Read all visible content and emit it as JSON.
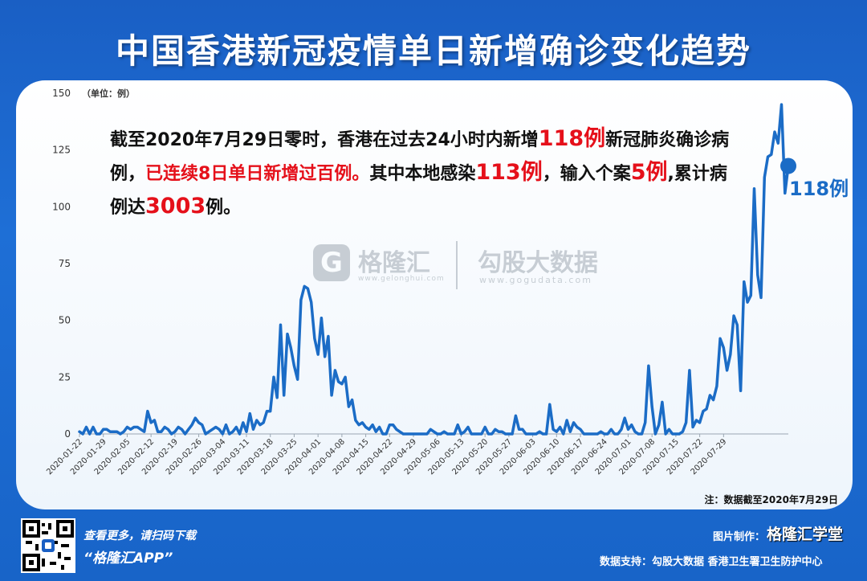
{
  "title": "中国香港新冠疫情单日新增确诊变化趋势",
  "annotation": {
    "p1": "截至2020年7月29日零时，香港在过去24小时内新增",
    "r1": "118例",
    "p2": "新冠肺炎确诊病例，",
    "r2": "已连续8日单日新增过百例。",
    "p3": "其中本地感染",
    "r3": "113例",
    "p4": "，输入个案",
    "r4": "5例",
    "p5": ",累计病例达",
    "r5": "3003",
    "p6": "例。"
  },
  "end_label": "118例",
  "note": "注：数据截至2020年7月29日",
  "watermark": {
    "logo": "G",
    "brand1": "格隆汇",
    "site1": "www.gelonghui.com",
    "brand2": "勾股大数据",
    "site2": "www.gogudata.com"
  },
  "footer": {
    "scan_text": "查看更多，请扫码下载",
    "app_text": "“格隆汇APP”",
    "made_by": "图片制作：",
    "brand": "格隆汇学堂",
    "support": "数据支持：勾股大数据  香港卫生署卫生防护中心"
  },
  "colors": {
    "line": "#1b6cc6",
    "highlight": "#e5101a",
    "background": "#1a5fc4"
  },
  "chart_data": {
    "type": "line",
    "title": "中国香港新冠疫情单日新增确诊变化趋势",
    "ylabel": "（单位：例）",
    "ylim": [
      0,
      150
    ],
    "yticks": [
      0,
      25,
      50,
      75,
      100,
      125,
      150
    ],
    "grid": false,
    "x_ticks": [
      "2020-01-22",
      "2020-01-29",
      "2020-02-05",
      "2020-02-12",
      "2020-02-19",
      "2020-02-26",
      "2020-03-04",
      "2020-03-11",
      "2020-03-18",
      "2020-03-25",
      "2020-04-01",
      "2020-04-08",
      "2020-04-15",
      "2020-04-22",
      "2020-04-29",
      "2020-05-06",
      "2020-05-13",
      "2020-05-20",
      "2020-05-27",
      "2020-06-03",
      "2020-06-10",
      "2020-06-17",
      "2020-06-24",
      "2020-07-01",
      "2020-07-08",
      "2020-07-15",
      "2020-07-22",
      "2020-07-29"
    ],
    "start_date": "2020-01-22",
    "series": [
      {
        "values": [
          1,
          0,
          3,
          0,
          3,
          0,
          0,
          2,
          2,
          1,
          1,
          1,
          0,
          1,
          3,
          2,
          3,
          3,
          2,
          1,
          10,
          5,
          6,
          1,
          1,
          3,
          2,
          0,
          1,
          3,
          2,
          0,
          2,
          4,
          7,
          5,
          4,
          0,
          1,
          2,
          3,
          2,
          0,
          4,
          0,
          1,
          3,
          0,
          5,
          1,
          9,
          2,
          6,
          4,
          5,
          10,
          10,
          25,
          16,
          48,
          17,
          44,
          38,
          30,
          24,
          59,
          65,
          64,
          58,
          42,
          35,
          51,
          34,
          43,
          17,
          28,
          23,
          22,
          25,
          12,
          15,
          6,
          4,
          5,
          3,
          2,
          4,
          1,
          3,
          0,
          0,
          4,
          4,
          2,
          1,
          0,
          0,
          0,
          0,
          0,
          0,
          0,
          0,
          2,
          1,
          0,
          0,
          1,
          0,
          0,
          0,
          4,
          0,
          1,
          3,
          0,
          0,
          0,
          0,
          3,
          0,
          0,
          2,
          1,
          1,
          0,
          0,
          0,
          8,
          2,
          2,
          0,
          0,
          0,
          0,
          1,
          0,
          0,
          13,
          2,
          1,
          3,
          0,
          6,
          1,
          5,
          3,
          2,
          0,
          0,
          0,
          0,
          0,
          1,
          0,
          0,
          2,
          0,
          0,
          2,
          7,
          2,
          4,
          1,
          0,
          0,
          5,
          30,
          12,
          0,
          4,
          14,
          0,
          2,
          0,
          0,
          0,
          1,
          5,
          28,
          3,
          6,
          5,
          10,
          11,
          17,
          15,
          21,
          42,
          38,
          28,
          35,
          52,
          48,
          19,
          67,
          58,
          61,
          108,
          70,
          60,
          113,
          122,
          123,
          133,
          128,
          145,
          106,
          118
        ]
      }
    ]
  }
}
